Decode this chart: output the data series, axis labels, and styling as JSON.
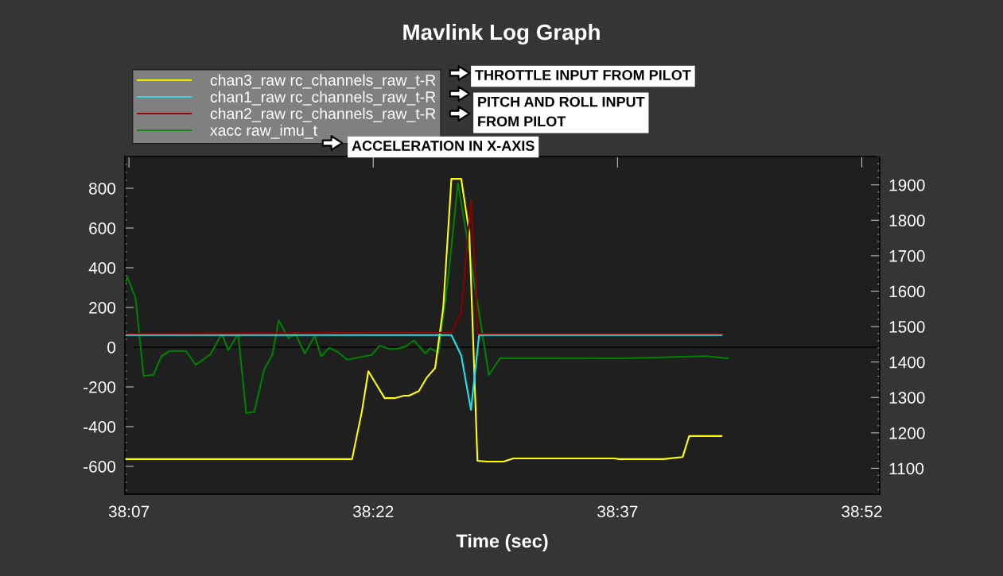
{
  "chart_data": {
    "type": "line",
    "title": "Mavlink Log Graph",
    "xlabel": "Time (sec)",
    "xlim": [
      2286.75,
      2333.1
    ],
    "xticks": [
      {
        "value": 2287,
        "label": "38:07"
      },
      {
        "value": 2302,
        "label": "38:22"
      },
      {
        "value": 2317,
        "label": "38:37"
      },
      {
        "value": 2332,
        "label": "38:52"
      }
    ],
    "ylim": [
      -740,
      960
    ],
    "yticks": [
      -600,
      -400,
      -200,
      0,
      200,
      400,
      600,
      800
    ],
    "y2lim": [
      1027,
      1980
    ],
    "y2ticks": [
      1100,
      1200,
      1300,
      1400,
      1500,
      1600,
      1700,
      1800,
      1900
    ],
    "legend": "top left",
    "grid": false,
    "ref_lines": [
      {
        "axis": "y",
        "value": 0,
        "color": "#000000"
      }
    ],
    "annotations": [
      "THROTTLE INPUT FROM PILOT",
      "PITCH AND ROLL INPUT\nFROM PILOT",
      "ACCELERATION IN X-AXIS"
    ],
    "series": [
      {
        "name": "chan3_raw rc_channels_raw_t-R",
        "color": "#ffff00",
        "axis": "y2",
        "x": [
          2286.8,
          2300.7,
          2301.3,
          2301.7,
          2302.7,
          2303.3,
          2303.9,
          2304.2,
          2304.8,
          2305.3,
          2305.8,
          2306.3,
          2306.8,
          2307.4,
          2307.9,
          2308.4,
          2309.0,
          2310.0,
          2310.6,
          2316.8,
          2317.1,
          2319.8,
          2321.0,
          2321.4,
          2323.4
        ],
        "values": [
          1126,
          1126,
          1260,
          1374,
          1298,
          1298,
          1305,
          1305,
          1318,
          1357,
          1383,
          1554,
          1917,
          1917,
          1765,
          1121,
          1119,
          1119,
          1128,
          1128,
          1126,
          1126,
          1132,
          1191,
          1191
        ]
      },
      {
        "name": "chan1_raw rc_channels_raw_t-R",
        "color": "#1ee3ea",
        "axis": "y2",
        "x": [
          2286.8,
          2306.8,
          2307.4,
          2308.0,
          2308.5,
          2323.4
        ],
        "values": [
          1476,
          1476,
          1419,
          1265,
          1476,
          1476
        ]
      },
      {
        "name": "chan2_raw rc_channels_raw_t-R",
        "color": "#8b0000",
        "axis": "y2",
        "x": [
          2286.8,
          2306.8,
          2307.4,
          2308.0,
          2308.3,
          2308.4,
          2323.4
        ],
        "values": [
          1480,
          1483,
          1540,
          1857,
          1621,
          1480,
          1480
        ]
      },
      {
        "name": "xacc raw_imu_t",
        "color": "#008000",
        "axis": "y",
        "x": [
          2286.8,
          2286.9,
          2287.4,
          2287.9,
          2288.5,
          2289.0,
          2289.5,
          2290.5,
          2291.1,
          2292.0,
          2292.7,
          2293.1,
          2293.7,
          2294.2,
          2294.7,
          2295.3,
          2295.8,
          2296.2,
          2296.8,
          2297.2,
          2297.8,
          2298.4,
          2298.8,
          2299.3,
          2299.8,
          2300.4,
          2301.9,
          2302.4,
          2303.0,
          2303.4,
          2304.0,
          2304.5,
          2305.2,
          2305.5,
          2306.0,
          2306.6,
          2307.2,
          2307.9,
          2309.1,
          2309.8,
          2317.5,
          2322.4,
          2323.8
        ],
        "values": [
          328,
          355,
          248,
          -145,
          -139,
          -45,
          -19,
          -19,
          -89,
          -36,
          68,
          -15,
          68,
          -332,
          -325,
          -112,
          -39,
          135,
          44,
          71,
          -32,
          57,
          -45,
          -3,
          -23,
          -63,
          -39,
          8,
          -9,
          -9,
          4,
          35,
          -32,
          -5,
          -28,
          348,
          828,
          481,
          -139,
          -55,
          -56,
          -45,
          -56
        ]
      }
    ]
  }
}
